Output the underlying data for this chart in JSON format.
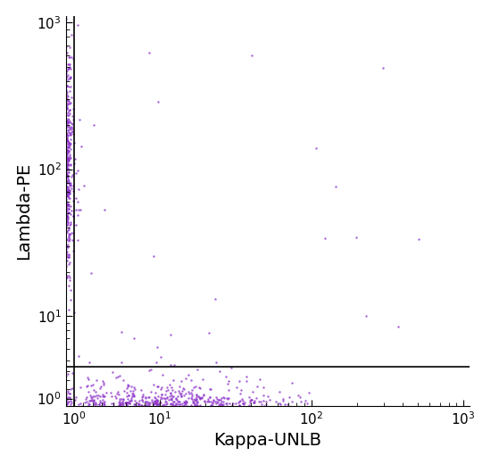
{
  "xlabel": "Kappa-UNLB",
  "ylabel": "Lambda-PE",
  "dot_color": "#8B2FC9",
  "dot_size": 3.0,
  "dot_alpha": 0.75,
  "quadrant_x": 1.0,
  "quadrant_y": 4.5,
  "cluster1_x_log_mean": -0.45,
  "cluster1_x_log_std": 0.28,
  "cluster1_y_log_mean": 2.05,
  "cluster1_y_log_std": 0.38,
  "cluster1_n": 380,
  "cluster2_x_log_mean": 1.0,
  "cluster2_x_log_std": 0.38,
  "cluster2_y_lin_mean": 0.8,
  "cluster2_y_lin_std": 0.38,
  "cluster2_n": 480,
  "sparse_ur_n": 15,
  "sparse_ll_n": 25,
  "seed": 42,
  "linthresh": 4.5,
  "linscale": 0.25,
  "xlim_low": 0.15,
  "xlim_high": 1100,
  "ylim_low": 0.15,
  "ylim_high": 1100,
  "xticks": [
    1,
    10,
    100,
    1000
  ],
  "yticks": [
    1,
    10,
    100,
    1000
  ],
  "xtick_labels": [
    "$10^0$",
    "$10^1$",
    "$10^2$",
    "$10^3$"
  ],
  "ytick_labels": [
    "$10^0$",
    "$10^1$",
    "$10^2$",
    "$10^3$"
  ],
  "label_fontsize": 14,
  "tick_fontsize": 11
}
